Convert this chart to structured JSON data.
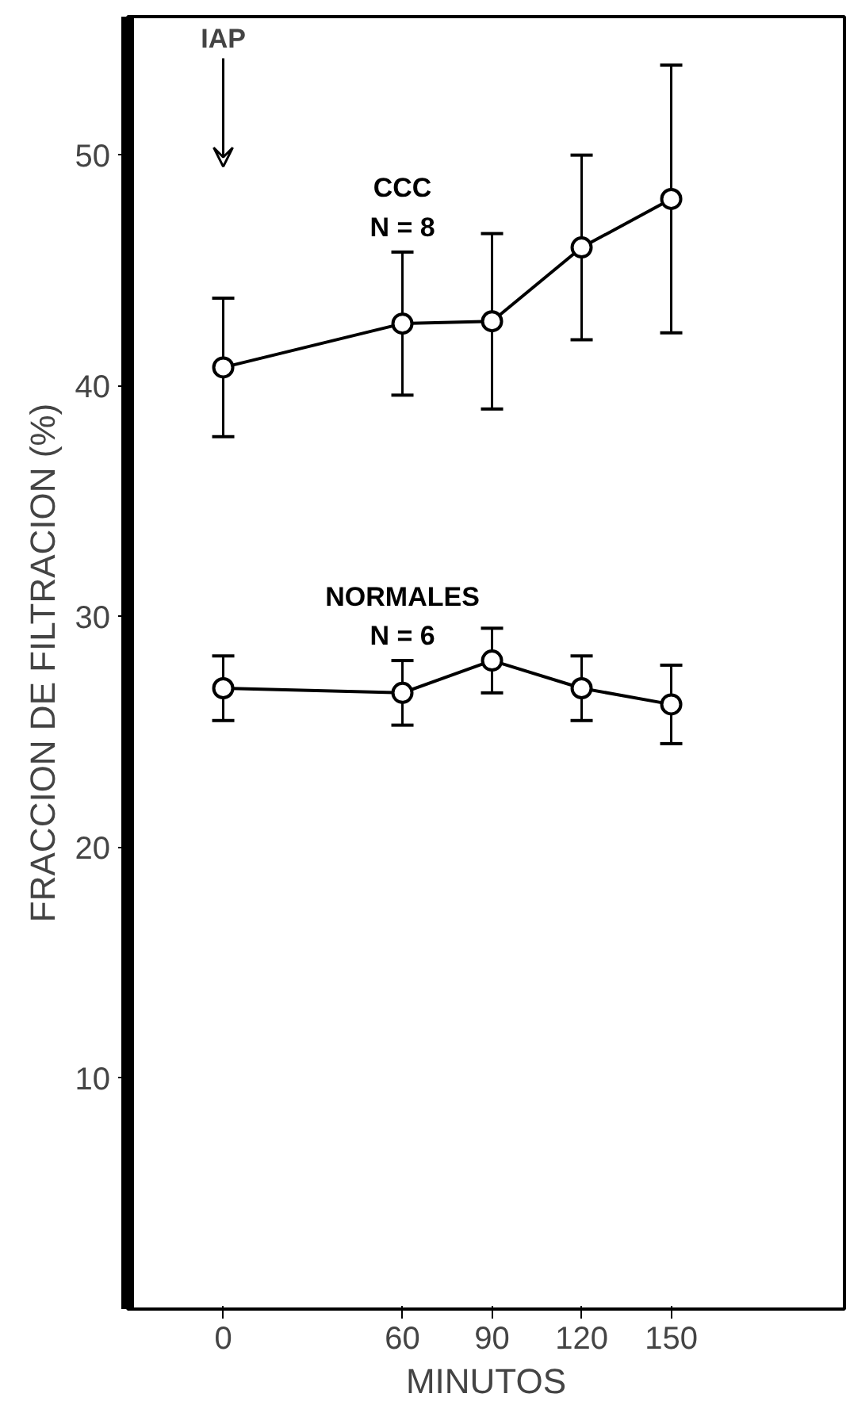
{
  "chart_data": {
    "type": "line",
    "xlabel": "MINUTOS",
    "ylabel": "FRACCION DE FILTRACION (%)",
    "x": [
      0,
      60,
      90,
      120,
      150
    ],
    "series": [
      {
        "name": "CCC\nN = 8",
        "color": "#000000",
        "values": [
          40.8,
          42.7,
          42.8,
          46.0,
          48.1
        ],
        "errors": [
          3.0,
          3.1,
          3.8,
          4.0,
          5.8
        ]
      },
      {
        "name": "NORMALES\nN = 6",
        "color": "#000000",
        "values": [
          26.9,
          26.7,
          28.1,
          26.9,
          26.2
        ],
        "errors": [
          1.4,
          1.4,
          1.4,
          1.4,
          1.7
        ]
      }
    ],
    "xlim": [
      -32,
      208
    ],
    "ylim": [
      0,
      56
    ],
    "xticks": [
      0,
      60,
      90,
      120,
      150
    ],
    "yticks": [
      10,
      20,
      30,
      40,
      50
    ],
    "annotations": [
      "IAP"
    ],
    "marker": "circle",
    "line_style": "solid",
    "grid": false
  }
}
